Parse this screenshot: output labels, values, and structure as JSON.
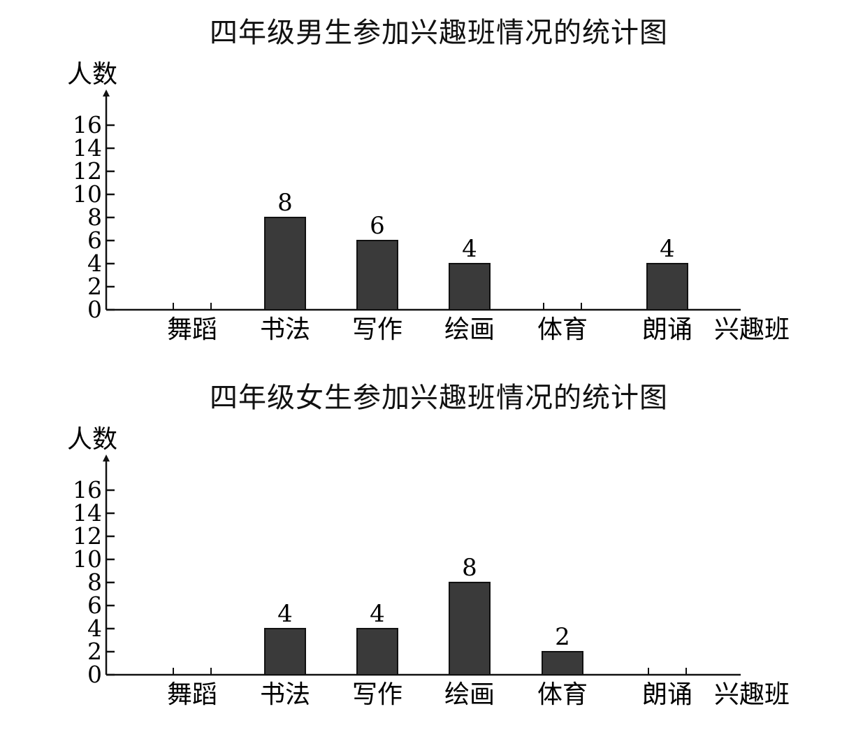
{
  "chart_data": [
    {
      "type": "bar",
      "title": "四年级男生参加兴趣班情况的统计图",
      "ylabel": "人数",
      "xlabel": "兴趣班",
      "categories": [
        "舞蹈",
        "书法",
        "写作",
        "绘画",
        "体育",
        "朗诵"
      ],
      "values": [
        0,
        8,
        6,
        4,
        0,
        4
      ],
      "data_labels": [
        "",
        "8",
        "6",
        "4",
        "",
        "4"
      ],
      "ylim": [
        0,
        16
      ],
      "yticks": [
        "0",
        "2",
        "4",
        "6",
        "8",
        "10",
        "12",
        "14",
        "16"
      ],
      "grid": false,
      "bar_color": "#3a3a3a"
    },
    {
      "type": "bar",
      "title": "四年级女生参加兴趣班情况的统计图",
      "ylabel": "人数",
      "xlabel": "兴趣班",
      "categories": [
        "舞蹈",
        "书法",
        "写作",
        "绘画",
        "体育",
        "朗诵"
      ],
      "values": [
        0,
        4,
        4,
        8,
        2,
        0
      ],
      "data_labels": [
        "",
        "4",
        "4",
        "8",
        "2",
        ""
      ],
      "ylim": [
        0,
        16
      ],
      "yticks": [
        "0",
        "2",
        "4",
        "6",
        "8",
        "10",
        "12",
        "14",
        "16"
      ],
      "grid": false,
      "bar_color": "#3a3a3a"
    }
  ]
}
